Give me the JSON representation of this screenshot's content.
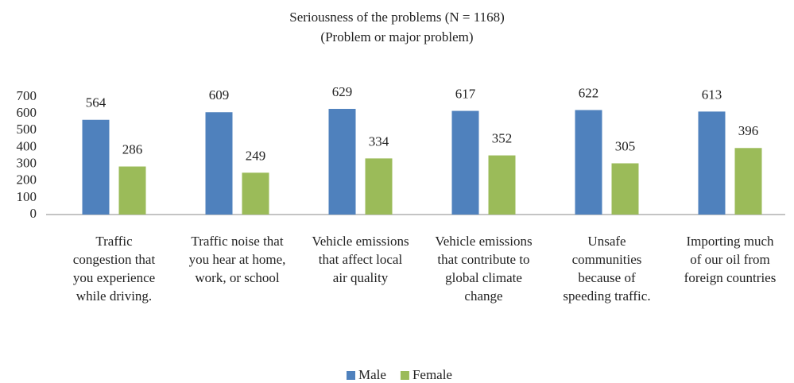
{
  "chart_data": {
    "type": "bar",
    "title": "Seriousness of the problems (N = 1168)",
    "subtitle": "(Problem or major problem)",
    "categories": [
      "Traffic congestion that you experience while driving.",
      "Traffic noise that you hear at home, work, or school",
      "Vehicle emissions that affect local air quality",
      "Vehicle emissions that contribute to global climate change",
      "Unsafe communities because of speeding traffic.",
      "Importing much of our oil from foreign countries"
    ],
    "series": [
      {
        "name": "Male",
        "color": "#4f81bd",
        "values": [
          564,
          609,
          629,
          617,
          622,
          613
        ]
      },
      {
        "name": "Female",
        "color": "#9bbb59",
        "values": [
          286,
          249,
          334,
          352,
          305,
          396
        ]
      }
    ],
    "ylim": [
      0,
      700
    ],
    "yticks": [
      0,
      100,
      200,
      300,
      400,
      500,
      600,
      700
    ],
    "grid": false,
    "legend": "bottom"
  }
}
